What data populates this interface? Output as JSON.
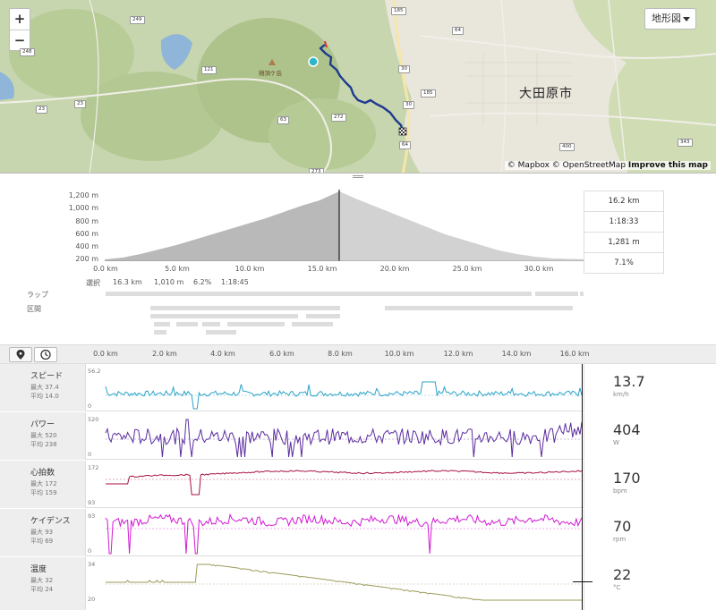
{
  "map": {
    "zoom_in": "+",
    "zoom_out": "−",
    "map_type_label": "地形図",
    "city_name": "大田原市",
    "peak_name": "鶏頂ケ岳",
    "road_numbers": [
      "185",
      "249",
      "121",
      "23",
      "23",
      "30",
      "30",
      "185",
      "64",
      "64",
      "272",
      "63",
      "400",
      "343",
      "273",
      "248"
    ],
    "attribution_mapbox": "© Mapbox",
    "attribution_osm": "© OpenStreetMap",
    "attribution_improve": "Improve this map",
    "route_color": "#1f3a8f",
    "start_color": "#2ab7c9"
  },
  "elevation": {
    "y_ticks": [
      "1,200 m",
      "1,000 m",
      "800 m",
      "600 m",
      "400 m",
      "200 m"
    ],
    "x_ticks": [
      "0.0 km",
      "5.0 km",
      "10.0 km",
      "15.0 km",
      "20.0 km",
      "25.0 km",
      "30.0 km"
    ],
    "stats": [
      "16.2 km",
      "1:18:33",
      "1,281 m",
      "7.1%"
    ],
    "selection": {
      "label": "選択",
      "distance": "16.3 km",
      "elevation": "1,010 m",
      "grade": "6.2%",
      "time": "1:18:45"
    },
    "laps_label": "ラップ",
    "segments_label": "区間"
  },
  "metrics_bar": {
    "distance_ticks": [
      "0.0 km",
      "2.0 km",
      "4.0 km",
      "6.0 km",
      "8.0 km",
      "10.0 km",
      "12.0 km",
      "14.0 km",
      "16.0 km"
    ]
  },
  "metrics": [
    {
      "name": "スピード",
      "max": "最大 37.4",
      "avg": "平均 14.0",
      "axis_top": "56.2",
      "axis_bottom": "0",
      "value": "13.7",
      "unit": "km/h",
      "color": "#2ba3c8"
    },
    {
      "name": "パワー",
      "max": "最大 520",
      "avg": "平均 238",
      "axis_top": "520",
      "axis_bottom": "0",
      "value": "404",
      "unit": "W",
      "color": "#5b2d9e"
    },
    {
      "name": "心拍数",
      "max": "最大 172",
      "avg": "平均 159",
      "axis_top": "172",
      "axis_bottom": "93",
      "value": "170",
      "unit": "bpm",
      "color": "#a8123e"
    },
    {
      "name": "ケイデンス",
      "max": "最大 93",
      "avg": "平均 69",
      "axis_top": "93",
      "axis_bottom": "0",
      "value": "70",
      "unit": "rpm",
      "color": "#d21ad2"
    },
    {
      "name": "温度",
      "max": "最大 32",
      "avg": "平均 24",
      "axis_top": "34",
      "axis_bottom": "20",
      "value": "22",
      "unit": "°C",
      "color": "#9b9a5a"
    }
  ]
}
